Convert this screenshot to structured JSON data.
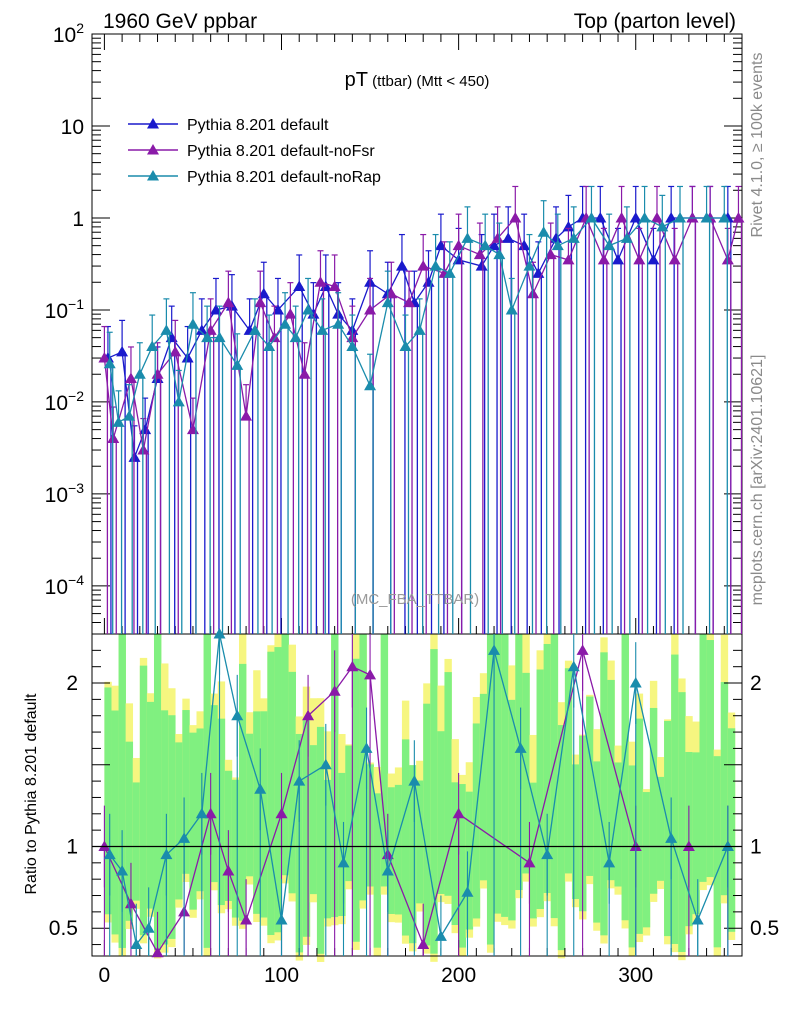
{
  "header": {
    "left": "1960 GeV ppbar",
    "right": "Top (parton level)"
  },
  "side_labels": {
    "rivet": "Rivet 4.1.0, ≥ 100k events",
    "mcplots": "mcplots.cern.ch [arXiv:2401.10621]"
  },
  "watermark": "(MC_FBA_TTBAR)",
  "title": {
    "main": "pT",
    "sub": " (ttbar)",
    "cut": " (Mtt < 450)"
  },
  "colors": {
    "default": "#1a1acc",
    "noFsr": "#8a1aa8",
    "noRap": "#1a8cac",
    "band_green": "#80f080",
    "band_yellow": "#f6f680"
  },
  "chart_data": [
    {
      "type": "line",
      "scale": "log",
      "xlim": [
        -7,
        360
      ],
      "ylim": [
        3e-05,
        100
      ],
      "y_ticks": [
        {
          "value": 100,
          "base": "10",
          "exp": "2"
        },
        {
          "value": 10,
          "base": "10",
          "exp": ""
        },
        {
          "value": 1,
          "base": "1",
          "exp": ""
        },
        {
          "value": 0.1,
          "base": "10",
          "exp": "−1"
        },
        {
          "value": 0.01,
          "base": "10",
          "exp": "−2"
        },
        {
          "value": 0.001,
          "base": "10",
          "exp": "−3"
        },
        {
          "value": 0.0001,
          "base": "10",
          "exp": "−4"
        }
      ],
      "legend": [
        {
          "name": "Pythia 8.201 default",
          "color_key": "default"
        },
        {
          "name": "Pythia 8.201 default-noFsr",
          "color_key": "noFsr"
        },
        {
          "name": "Pythia 8.201 default-noRap",
          "color_key": "noRap"
        }
      ],
      "series": [
        {
          "name": "Pythia 8.201 default",
          "x": [
            2,
            10,
            17,
            23,
            30,
            38,
            47,
            55,
            63,
            72,
            82,
            90,
            98,
            110,
            118,
            125,
            132,
            140,
            150,
            160,
            168,
            175,
            183,
            190,
            200,
            213,
            220,
            228,
            237,
            245,
            255,
            262,
            270,
            280,
            290,
            300,
            310,
            320,
            332,
            342,
            352
          ],
          "y": [
            0.03,
            0.035,
            0.0025,
            0.005,
            0.018,
            0.05,
            0.03,
            0.06,
            0.1,
            0.11,
            0.06,
            0.15,
            0.1,
            0.18,
            0.09,
            0.18,
            0.09,
            0.06,
            0.2,
            0.15,
            0.3,
            0.12,
            0.2,
            0.5,
            0.35,
            0.3,
            0.5,
            0.6,
            0.5,
            0.25,
            0.6,
            0.8,
            1,
            1,
            0.35,
            1,
            0.35,
            1,
            1,
            1,
            1
          ]
        },
        {
          "name": "Pythia 8.201 default-noFsr",
          "x": [
            0,
            5,
            15,
            22,
            30,
            40,
            50,
            60,
            70,
            80,
            88,
            96,
            105,
            113,
            122,
            130,
            140,
            150,
            162,
            172,
            180,
            192,
            200,
            212,
            222,
            232,
            242,
            252,
            262,
            272,
            282,
            292,
            302,
            312,
            322,
            332,
            342,
            352,
            358
          ],
          "y": [
            0.03,
            0.004,
            0.018,
            0.003,
            0.02,
            0.035,
            0.005,
            0.06,
            0.12,
            0.007,
            0.12,
            0.05,
            0.09,
            0.02,
            0.2,
            0.18,
            0.05,
            0.1,
            0.15,
            0.12,
            0.3,
            0.25,
            0.5,
            0.4,
            0.6,
            1,
            0.15,
            0.4,
            0.35,
            1,
            0.35,
            1,
            0.35,
            1,
            0.35,
            1,
            1,
            0.35,
            1
          ]
        },
        {
          "name": "Pythia 8.201 default-noRap",
          "x": [
            3,
            8,
            14,
            20,
            27,
            35,
            42,
            50,
            58,
            65,
            75,
            85,
            93,
            102,
            108,
            115,
            123,
            132,
            140,
            150,
            160,
            170,
            178,
            187,
            195,
            205,
            215,
            223,
            230,
            240,
            248,
            256,
            265,
            275,
            285,
            295,
            305,
            315,
            325,
            340,
            350
          ],
          "y": [
            0.026,
            0.006,
            0.007,
            0.02,
            0.04,
            0.06,
            0.01,
            0.07,
            0.05,
            0.05,
            0.025,
            0.06,
            0.04,
            0.07,
            0.05,
            0.1,
            0.06,
            0.07,
            0.04,
            0.015,
            0.12,
            0.04,
            0.06,
            0.3,
            0.25,
            0.6,
            0.5,
            0.4,
            0.1,
            0.3,
            0.7,
            0.5,
            0.6,
            1,
            0.5,
            0.6,
            1,
            0.8,
            1,
            1,
            1
          ]
        }
      ]
    },
    {
      "type": "line",
      "ylabel": "Ratio to Pythia 8.201 default",
      "xlim": [
        -7,
        360
      ],
      "ylim": [
        0.33,
        2.3
      ],
      "x_ticks": [
        0,
        100,
        200,
        300
      ],
      "y_ticks": [
        0.5,
        1,
        2
      ],
      "reference": 1,
      "series": [
        {
          "name": "Pythia 8.201 default-noFsr",
          "x": [
            0,
            15,
            30,
            45,
            60,
            70,
            80,
            100,
            115,
            130,
            140,
            150,
            160,
            180,
            200,
            240,
            270,
            300,
            330,
            352
          ],
          "y": [
            1,
            0.65,
            0.35,
            0.6,
            1.2,
            0.85,
            0.55,
            1.2,
            1.8,
            1.95,
            2.1,
            2.05,
            0.95,
            0.4,
            1.2,
            0.9,
            2.2,
            1,
            1,
            1
          ]
        },
        {
          "name": "Pythia 8.201 default-noRap",
          "x": [
            3,
            10,
            18,
            25,
            35,
            45,
            55,
            65,
            75,
            88,
            100,
            110,
            125,
            135,
            148,
            160,
            175,
            190,
            205,
            220,
            235,
            250,
            265,
            285,
            300,
            320,
            335,
            352
          ],
          "y": [
            0.95,
            0.85,
            0.4,
            0.5,
            0.95,
            1.05,
            1.2,
            2.3,
            1.8,
            1.35,
            0.55,
            1.4,
            1.5,
            0.9,
            1.6,
            0.85,
            1.4,
            0.45,
            0.72,
            2.2,
            1.6,
            0.95,
            2.1,
            0.9,
            2,
            1.05,
            0.55,
            1
          ]
        }
      ]
    }
  ]
}
